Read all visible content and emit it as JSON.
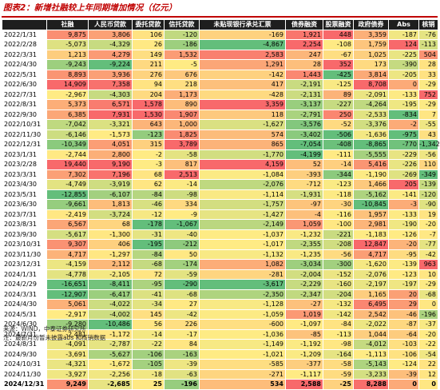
{
  "title": "图表2：新增社融较上年同期增加情况（亿元）",
  "headers": [
    "",
    "社融",
    "人民币贷款",
    "委托贷款",
    "信托贷款",
    "未贴现银行承兑汇票",
    "债券融资",
    "股票融资",
    "政府债券",
    "Abs",
    "核销"
  ],
  "rows": [
    [
      "2022/1/31",
      "9,875",
      "3,806",
      "106",
      "-120",
      "-169",
      "1,921",
      "448",
      "3,359",
      "-187",
      "-76"
    ],
    [
      "2022/2/28",
      "-5,073",
      "-4,329",
      "26",
      "-186",
      "-4,867",
      "2,254",
      "-108",
      "1,759",
      "124",
      "-113"
    ],
    [
      "2022/3/31",
      "1,213",
      "4,279",
      "149",
      "1,532",
      "2,583",
      "247",
      "-67",
      "1,025",
      "-225",
      "504"
    ],
    [
      "2022/4/30",
      "-9,243",
      "-9,224",
      "211",
      "-5",
      "1,291",
      "28",
      "352",
      "173",
      "-390",
      "28"
    ],
    [
      "2022/5/31",
      "8,893",
      "3,936",
      "276",
      "676",
      "-142",
      "1,443",
      "-425",
      "3,814",
      "-205",
      "33"
    ],
    [
      "2022/6/30",
      "14,909",
      "7,358",
      "94",
      "218",
      "417",
      "-2,191",
      "-125",
      "8,708",
      "0",
      "-29"
    ],
    [
      "2022/7/31",
      "-2,967",
      "-4,303",
      "204",
      "1,173",
      "-428",
      "-2,131",
      "89",
      "-2,091",
      "-133",
      "752"
    ],
    [
      "2022/8/31",
      "5,373",
      "6,571",
      "1,578",
      "890",
      "3,359",
      "-3,137",
      "-227",
      "-4,264",
      "-195",
      "-29"
    ],
    [
      "2022/9/30",
      "6,385",
      "7,931",
      "1,530",
      "1,907",
      "118",
      "-2,791",
      "250",
      "-2,533",
      "-834",
      "7"
    ],
    [
      "2022/10/31",
      "-7,042",
      "-3,321",
      "643",
      "1,000",
      "-1,627",
      "-3,576",
      "-52",
      "-3,376",
      "-2",
      "-55"
    ],
    [
      "2022/11/30",
      "-6,146",
      "-1,573",
      "-123",
      "1,825",
      "574",
      "-3,402",
      "-506",
      "-1,636",
      "-975",
      "43"
    ],
    [
      "2022/12/31",
      "-10,349",
      "4,051",
      "315",
      "3,789",
      "865",
      "-7,054",
      "-408",
      "-8,865",
      "-770",
      "-1,342"
    ],
    [
      "2023/1/31",
      "-2,744",
      "2,800",
      "-2",
      "-58",
      "-1,770",
      "-4,199",
      "-111",
      "-5,555",
      "-229",
      "-56"
    ],
    [
      "2023/2/28",
      "19,440",
      "9,190",
      "-3",
      "817",
      "4,159",
      "52",
      "-14",
      "5,416",
      "-226",
      "110"
    ],
    [
      "2023/3/31",
      "7,302",
      "7,196",
      "68",
      "2,513",
      "-1,084",
      "-393",
      "-344",
      "-1,190",
      "-269",
      "-349"
    ],
    [
      "2023/4/30",
      "-4,749",
      "-3,919",
      "62",
      "-14",
      "-2,076",
      "-712",
      "-123",
      "1,466",
      "205",
      "-139"
    ],
    [
      "2023/5/31",
      "-12,855",
      "-6,107",
      "-84",
      "-98",
      "-1,114",
      "-1,931",
      "-118",
      "-5,162",
      "-141",
      "-120"
    ],
    [
      "2023/6/30",
      "-9,661",
      "1,813",
      "-46",
      "334",
      "-1,757",
      "-97",
      "-30",
      "-10,845",
      "-3",
      "-90"
    ],
    [
      "2023/7/31",
      "-2,419",
      "-3,724",
      "-12",
      "-9",
      "-1,427",
      "-4",
      "-116",
      "1,957",
      "-133",
      "19"
    ],
    [
      "2023/8/31",
      "6,567",
      "68",
      "-178",
      "-1,067",
      "-2,149",
      "1,059",
      "-100",
      "2,981",
      "-190",
      "-20"
    ],
    [
      "2023/9/30",
      "-5,617",
      "-1,300",
      "-31",
      "-40",
      "-1,037",
      "-1,232",
      "-221",
      "-1,183",
      "-126",
      "-7"
    ],
    [
      "2023/10/31",
      "9,307",
      "406",
      "-195",
      "-212",
      "-1,017",
      "-2,355",
      "-208",
      "12,847",
      "-20",
      "-77"
    ],
    [
      "2023/11/30",
      "4,717",
      "-1,297",
      "-84",
      "50",
      "-1,132",
      "-1,235",
      "-56",
      "4,717",
      "-95",
      "-42"
    ],
    [
      "2023/12/31",
      "-4,159",
      "2,112",
      "-68",
      "-174",
      "1,082",
      "-3,034",
      "-300",
      "-1,620",
      "-139",
      "963"
    ],
    [
      "2024/1/31",
      "-4,778",
      "-2,105",
      "72",
      "-59",
      "-281",
      "-2,004",
      "-152",
      "-2,076",
      "-123",
      "10"
    ],
    [
      "2024/2/29",
      "-16,651",
      "-8,411",
      "-95",
      "-290",
      "-3,617",
      "-2,229",
      "-160",
      "-2,197",
      "-197",
      "-29"
    ],
    [
      "2024/3/31",
      "-12,907",
      "-6,417",
      "-41",
      "-68",
      "-2,350",
      "-2,347",
      "-204",
      "1,165",
      "20",
      "-68"
    ],
    [
      "2024/4/30",
      "5,061",
      "-4,022",
      "-34",
      "27",
      "-1,128",
      "-27",
      "-132",
      "6,495",
      "29",
      "0"
    ],
    [
      "2024/5/31",
      "-2,917",
      "-4,002",
      "145",
      "-42",
      "-1,059",
      "1,019",
      "-142",
      "2,542",
      "-46",
      "-196"
    ],
    [
      "2024/6/30",
      "-9,280",
      "-10,486",
      "56",
      "226",
      "-600",
      "-1,097",
      "-84",
      "-2,022",
      "-87",
      "-37"
    ],
    [
      "2024/7/31",
      "-2,481",
      "-1,172",
      "-14",
      "-17",
      "-1,036",
      "-85",
      "-113",
      "1,044",
      "-64",
      "-20"
    ],
    [
      "2024/8/31",
      "-4,091",
      "-2,787",
      "-22",
      "84",
      "-1,149",
      "-1,192",
      "-98",
      "-4,012",
      "-103",
      "-22"
    ],
    [
      "2024/9/30",
      "-3,691",
      "-5,627",
      "-106",
      "-163",
      "-1,021",
      "-1,209",
      "-164",
      "-1,113",
      "-106",
      "-54"
    ],
    [
      "2024/10/31",
      "-4,321",
      "-1,672",
      "-105",
      "-39",
      "-585",
      "-377",
      "-58",
      "-5,143",
      "-124",
      "22"
    ],
    [
      "2024/11/30",
      "-3,927",
      "-2,256",
      "-18",
      "-63",
      "-271",
      "-1,117",
      "-59",
      "-3,233",
      "-39",
      "12"
    ],
    [
      "2024/12/31",
      "9,249",
      "-2,685",
      "25",
      "-196",
      "534",
      "2,588",
      "-25",
      "8,288",
      "0",
      "0"
    ]
  ],
  "notes": {
    "source": "来源：WIND，中泰证券研究所",
    "note": "注：最新月份暂未披露abs 和核销数据"
  }
}
